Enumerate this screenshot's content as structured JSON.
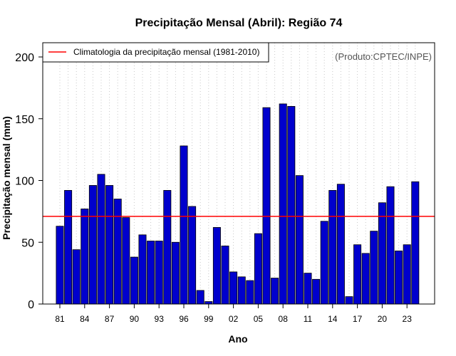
{
  "chart_data": {
    "type": "bar",
    "title": "Precipitação Mensal (Abril): Região 74",
    "xlabel": "Ano",
    "ylabel": "Precipitação mensal (mm)",
    "ylim": [
      0,
      210
    ],
    "yticks": [
      0,
      50,
      100,
      150,
      200
    ],
    "credit": "(Produto:CPTEC/INPE)",
    "bar_color": "#0000cd",
    "climatology_color": "#ff0000",
    "grid": "vertical dotted",
    "legend": {
      "position": "top-left",
      "entries": [
        {
          "label": "Climatologia da precipitação mensal (1981-2010)",
          "color": "#ff0000"
        }
      ]
    },
    "climatology": 71,
    "categories": [
      "81",
      "82",
      "83",
      "84",
      "85",
      "86",
      "87",
      "88",
      "89",
      "90",
      "91",
      "92",
      "93",
      "94",
      "95",
      "96",
      "97",
      "98",
      "99",
      "00",
      "01",
      "02",
      "03",
      "04",
      "05",
      "06",
      "07",
      "08",
      "09",
      "10",
      "11",
      "12",
      "13",
      "14",
      "15",
      "16",
      "17",
      "18",
      "19",
      "20",
      "21",
      "22",
      "23",
      "24"
    ],
    "x_tick_labels": [
      "81",
      "84",
      "87",
      "90",
      "93",
      "96",
      "99",
      "02",
      "05",
      "08",
      "11",
      "14",
      "17",
      "20",
      "23"
    ],
    "values": [
      63,
      92,
      44,
      77,
      96,
      105,
      96,
      85,
      70,
      38,
      56,
      51,
      51,
      92,
      50,
      128,
      79,
      11,
      2,
      62,
      47,
      26,
      22,
      19,
      57,
      159,
      21,
      162,
      160,
      104,
      25,
      20,
      67,
      92,
      97,
      6,
      48,
      41,
      59,
      82,
      95,
      43,
      48,
      99
    ]
  }
}
